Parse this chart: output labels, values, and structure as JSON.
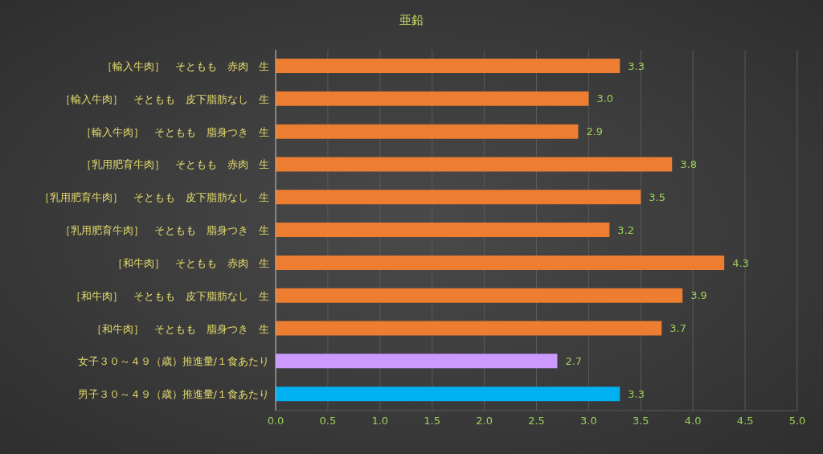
{
  "chart_data": {
    "type": "bar",
    "orientation": "horizontal",
    "title": "亜鉛",
    "categories": [
      "［輸入牛肉］　そともも　赤肉　生",
      "［輸入牛肉］　そともも　皮下脂肪なし　生",
      "［輸入牛肉］　そともも　脂身つき　生",
      "［乳用肥育牛肉］　そともも　赤肉　生",
      "［乳用肥育牛肉］　そともも　皮下脂肪なし　生",
      "［乳用肥育牛肉］　そともも　脂身つき　生",
      "［和牛肉］　そともも　赤肉　生",
      "［和牛肉］　そともも　皮下脂肪なし　生",
      "［和牛肉］　そともも　脂身つき　生",
      "女子３０～４９（歳）推進量/１食あたり",
      "男子３０～４９（歳）推進量/１食あたり"
    ],
    "values": [
      3.3,
      3.0,
      2.9,
      3.8,
      3.5,
      3.2,
      4.3,
      3.9,
      3.7,
      2.7,
      3.3
    ],
    "value_labels": [
      "3.3",
      "3.0",
      "2.9",
      "3.8",
      "3.5",
      "3.2",
      "4.3",
      "3.9",
      "3.7",
      "2.7",
      "3.3"
    ],
    "colors": [
      "#ed7d31",
      "#ed7d31",
      "#ed7d31",
      "#ed7d31",
      "#ed7d31",
      "#ed7d31",
      "#ed7d31",
      "#ed7d31",
      "#ed7d31",
      "#cc99ff",
      "#00b0f0"
    ],
    "xlim": [
      0,
      5
    ],
    "xticks": [
      {
        "value": 0,
        "label": "0.0"
      },
      {
        "value": 0.5,
        "label": "0.5"
      },
      {
        "value": 1,
        "label": "1.0"
      },
      {
        "value": 1.5,
        "label": "1.5"
      },
      {
        "value": 2,
        "label": "2.0"
      },
      {
        "value": 2.5,
        "label": "2.5"
      },
      {
        "value": 3,
        "label": "3.0"
      },
      {
        "value": 3.5,
        "label": "3.5"
      },
      {
        "value": 4,
        "label": "4.0"
      },
      {
        "value": 4.5,
        "label": "4.5"
      },
      {
        "value": 5,
        "label": "5.0"
      }
    ],
    "grid": "x"
  }
}
